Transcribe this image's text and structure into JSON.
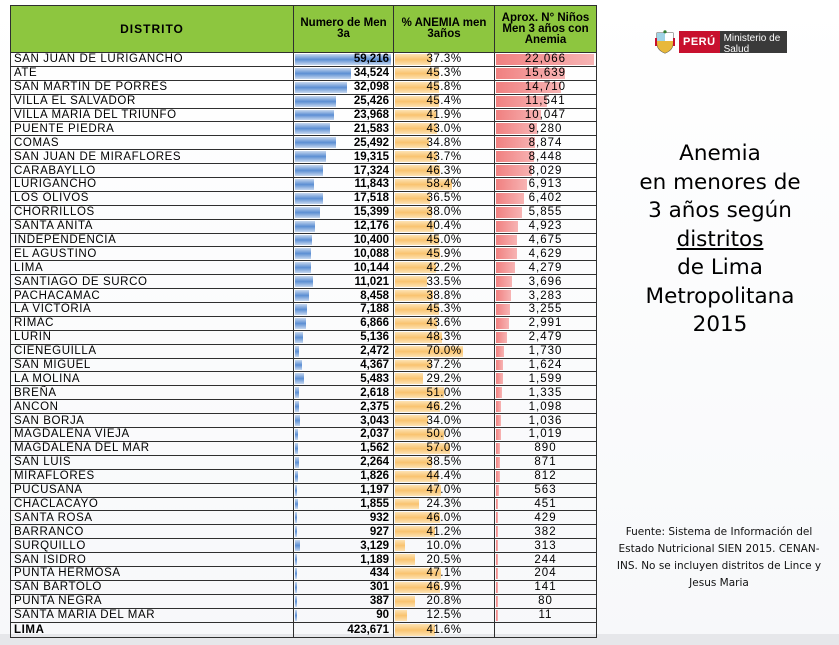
{
  "chart_data": {
    "type": "table",
    "columns": [
      "DISTRITO",
      "Numero de Men 3a",
      "% ANEMIA men 3años",
      "Aprox. N° Niños Men 3 años con Anemia"
    ],
    "rows": [
      {
        "distrito": "SAN JUAN DE LURIGANCHO",
        "numero": "59,216",
        "pct": "37.3%",
        "ninos": "22,066",
        "numero_value": 59216,
        "pct_value": 37.3,
        "ninos_value": 22066
      },
      {
        "distrito": "ATE",
        "numero": "34,524",
        "pct": "45.3%",
        "ninos": "15,639",
        "numero_value": 34524,
        "pct_value": 45.3,
        "ninos_value": 15639
      },
      {
        "distrito": "SAN MARTIN DE PORRES",
        "numero": "32,098",
        "pct": "45.8%",
        "ninos": "14,710",
        "numero_value": 32098,
        "pct_value": 45.8,
        "ninos_value": 14710
      },
      {
        "distrito": "VILLA EL SALVADOR",
        "numero": "25,426",
        "pct": "45.4%",
        "ninos": "11,541",
        "numero_value": 25426,
        "pct_value": 45.4,
        "ninos_value": 11541
      },
      {
        "distrito": "VILLA MARIA DEL TRIUNFO",
        "numero": "23,968",
        "pct": "41.9%",
        "ninos": "10,047",
        "numero_value": 23968,
        "pct_value": 41.9,
        "ninos_value": 10047
      },
      {
        "distrito": "PUENTE PIEDRA",
        "numero": "21,583",
        "pct": "43.0%",
        "ninos": "9,280",
        "numero_value": 21583,
        "pct_value": 43.0,
        "ninos_value": 9280
      },
      {
        "distrito": "COMAS",
        "numero": "25,492",
        "pct": "34.8%",
        "ninos": "8,874",
        "numero_value": 25492,
        "pct_value": 34.8,
        "ninos_value": 8874
      },
      {
        "distrito": "SAN JUAN DE MIRAFLORES",
        "numero": "19,315",
        "pct": "43.7%",
        "ninos": "8,448",
        "numero_value": 19315,
        "pct_value": 43.7,
        "ninos_value": 8448
      },
      {
        "distrito": "CARABAYLLO",
        "numero": "17,324",
        "pct": "46.3%",
        "ninos": "8,029",
        "numero_value": 17324,
        "pct_value": 46.3,
        "ninos_value": 8029
      },
      {
        "distrito": "LURIGANCHO",
        "numero": "11,843",
        "pct": "58.4%",
        "ninos": "6,913",
        "numero_value": 11843,
        "pct_value": 58.4,
        "ninos_value": 6913
      },
      {
        "distrito": "LOS OLIVOS",
        "numero": "17,518",
        "pct": "36.5%",
        "ninos": "6,402",
        "numero_value": 17518,
        "pct_value": 36.5,
        "ninos_value": 6402
      },
      {
        "distrito": "CHORRILLOS",
        "numero": "15,399",
        "pct": "38.0%",
        "ninos": "5,855",
        "numero_value": 15399,
        "pct_value": 38.0,
        "ninos_value": 5855
      },
      {
        "distrito": "SANTA ANITA",
        "numero": "12,176",
        "pct": "40.4%",
        "ninos": "4,923",
        "numero_value": 12176,
        "pct_value": 40.4,
        "ninos_value": 4923
      },
      {
        "distrito": "INDEPENDENCIA",
        "numero": "10,400",
        "pct": "45.0%",
        "ninos": "4,675",
        "numero_value": 10400,
        "pct_value": 45.0,
        "ninos_value": 4675
      },
      {
        "distrito": "EL AGUSTINO",
        "numero": "10,088",
        "pct": "45.9%",
        "ninos": "4,629",
        "numero_value": 10088,
        "pct_value": 45.9,
        "ninos_value": 4629
      },
      {
        "distrito": "LIMA",
        "numero": "10,144",
        "pct": "42.2%",
        "ninos": "4,279",
        "numero_value": 10144,
        "pct_value": 42.2,
        "ninos_value": 4279
      },
      {
        "distrito": "SANTIAGO DE SURCO",
        "numero": "11,021",
        "pct": "33.5%",
        "ninos": "3,696",
        "numero_value": 11021,
        "pct_value": 33.5,
        "ninos_value": 3696
      },
      {
        "distrito": "PACHACAMAC",
        "numero": "8,458",
        "pct": "38.8%",
        "ninos": "3,283",
        "numero_value": 8458,
        "pct_value": 38.8,
        "ninos_value": 3283
      },
      {
        "distrito": "LA VICTORIA",
        "numero": "7,188",
        "pct": "45.3%",
        "ninos": "3,255",
        "numero_value": 7188,
        "pct_value": 45.3,
        "ninos_value": 3255
      },
      {
        "distrito": "RIMAC",
        "numero": "6,866",
        "pct": "43.6%",
        "ninos": "2,991",
        "numero_value": 6866,
        "pct_value": 43.6,
        "ninos_value": 2991
      },
      {
        "distrito": "LURIN",
        "numero": "5,136",
        "pct": "48.3%",
        "ninos": "2,479",
        "numero_value": 5136,
        "pct_value": 48.3,
        "ninos_value": 2479
      },
      {
        "distrito": "CIENEGUILLA",
        "numero": "2,472",
        "pct": "70.0%",
        "ninos": "1,730",
        "numero_value": 2472,
        "pct_value": 70.0,
        "ninos_value": 1730
      },
      {
        "distrito": "SAN MIGUEL",
        "numero": "4,367",
        "pct": "37.2%",
        "ninos": "1,624",
        "numero_value": 4367,
        "pct_value": 37.2,
        "ninos_value": 1624
      },
      {
        "distrito": "LA MOLINA",
        "numero": "5,483",
        "pct": "29.2%",
        "ninos": "1,599",
        "numero_value": 5483,
        "pct_value": 29.2,
        "ninos_value": 1599
      },
      {
        "distrito": "BREÑA",
        "numero": "2,618",
        "pct": "51.0%",
        "ninos": "1,335",
        "numero_value": 2618,
        "pct_value": 51.0,
        "ninos_value": 1335
      },
      {
        "distrito": "ANCON",
        "numero": "2,375",
        "pct": "46.2%",
        "ninos": "1,098",
        "numero_value": 2375,
        "pct_value": 46.2,
        "ninos_value": 1098
      },
      {
        "distrito": "SAN BORJA",
        "numero": "3,043",
        "pct": "34.0%",
        "ninos": "1,036",
        "numero_value": 3043,
        "pct_value": 34.0,
        "ninos_value": 1036
      },
      {
        "distrito": "MAGDALENA VIEJA",
        "numero": "2,037",
        "pct": "50.0%",
        "ninos": "1,019",
        "numero_value": 2037,
        "pct_value": 50.0,
        "ninos_value": 1019
      },
      {
        "distrito": "MAGDALENA DEL MAR",
        "numero": "1,562",
        "pct": "57.0%",
        "ninos": "890",
        "numero_value": 1562,
        "pct_value": 57.0,
        "ninos_value": 890
      },
      {
        "distrito": "SAN LUIS",
        "numero": "2,264",
        "pct": "38.5%",
        "ninos": "871",
        "numero_value": 2264,
        "pct_value": 38.5,
        "ninos_value": 871
      },
      {
        "distrito": "MIRAFLORES",
        "numero": "1,826",
        "pct": "44.4%",
        "ninos": "812",
        "numero_value": 1826,
        "pct_value": 44.4,
        "ninos_value": 812
      },
      {
        "distrito": "PUCUSANA",
        "numero": "1,197",
        "pct": "47.0%",
        "ninos": "563",
        "numero_value": 1197,
        "pct_value": 47.0,
        "ninos_value": 563
      },
      {
        "distrito": "CHACLACAYO",
        "numero": "1,855",
        "pct": "24.3%",
        "ninos": "451",
        "numero_value": 1855,
        "pct_value": 24.3,
        "ninos_value": 451
      },
      {
        "distrito": "SANTA ROSA",
        "numero": "932",
        "pct": "46.0%",
        "ninos": "429",
        "numero_value": 932,
        "pct_value": 46.0,
        "ninos_value": 429
      },
      {
        "distrito": "BARRANCO",
        "numero": "927",
        "pct": "41.2%",
        "ninos": "382",
        "numero_value": 927,
        "pct_value": 41.2,
        "ninos_value": 382
      },
      {
        "distrito": "SURQUILLO",
        "numero": "3,129",
        "pct": "10.0%",
        "ninos": "313",
        "numero_value": 3129,
        "pct_value": 10.0,
        "ninos_value": 313
      },
      {
        "distrito": "SAN ISIDRO",
        "numero": "1,189",
        "pct": "20.5%",
        "ninos": "244",
        "numero_value": 1189,
        "pct_value": 20.5,
        "ninos_value": 244
      },
      {
        "distrito": "PUNTA HERMOSA",
        "numero": "434",
        "pct": "47.1%",
        "ninos": "204",
        "numero_value": 434,
        "pct_value": 47.1,
        "ninos_value": 204
      },
      {
        "distrito": "SAN BARTOLO",
        "numero": "301",
        "pct": "46.9%",
        "ninos": "141",
        "numero_value": 301,
        "pct_value": 46.9,
        "ninos_value": 141
      },
      {
        "distrito": "PUNTA NEGRA",
        "numero": "387",
        "pct": "20.8%",
        "ninos": "80",
        "numero_value": 387,
        "pct_value": 20.8,
        "ninos_value": 80
      },
      {
        "distrito": "SANTA MARIA DEL MAR",
        "numero": "90",
        "pct": "12.5%",
        "ninos": "11",
        "numero_value": 90,
        "pct_value": 12.5,
        "ninos_value": 11
      }
    ],
    "total": {
      "distrito": "LIMA",
      "numero": "423,671",
      "pct": "41.6%",
      "ninos": "",
      "pct_value": 41.6
    }
  },
  "headers": {
    "distrito": "DISTRITO",
    "numero": "Numero de Men 3a",
    "pct": "% ANEMIA men 3años",
    "ninos": "Aprox. N° Niños Men 3 años con Anemia"
  },
  "logo": {
    "peru": "PERÚ",
    "ministerio": "Ministerio de Salud"
  },
  "title": {
    "line1": "Anemia",
    "line2": "en menores de",
    "line3": "3 años según",
    "line4": "distritos",
    "line5": "de Lima",
    "line6": "Metropolitana",
    "line7": "2015"
  },
  "source": "Fuente: Sistema de Información del Estado Nutricional SIEN 2015. CENAN-INS. No se incluyen distritos de Lince y Jesus Maria",
  "colors": {
    "header_green": "#8dc63f",
    "bar_blue": "#5b8ed3",
    "bar_orange": "#f9c36f",
    "bar_red": "#f08080"
  }
}
